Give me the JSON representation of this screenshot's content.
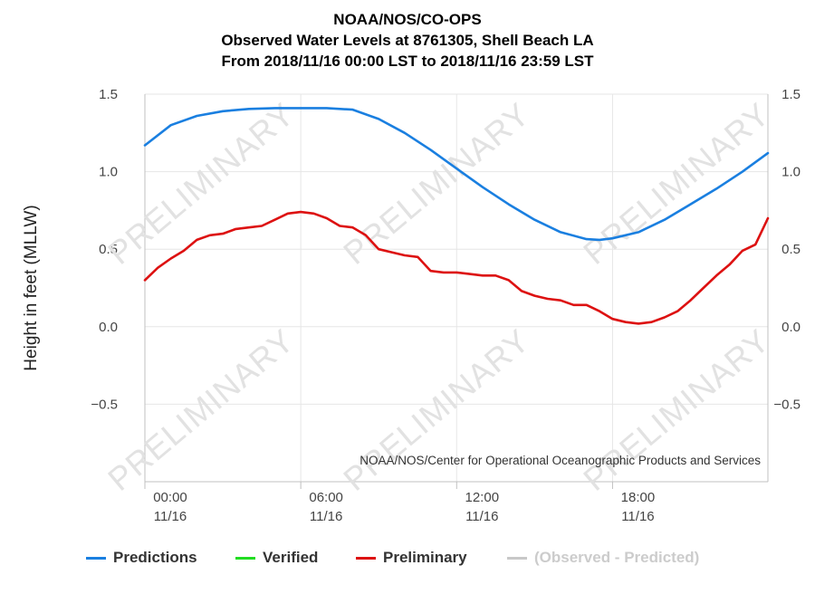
{
  "titles": {
    "line1": "NOAA/NOS/CO-OPS",
    "line2": "Observed Water Levels at 8761305, Shell Beach LA",
    "line3": "From 2018/11/16 00:00 LST to 2018/11/16 23:59 LST"
  },
  "credit": "NOAA/NOS/Center for Operational Oceanographic Products and Services",
  "watermark": "PRELIMINARY",
  "colors": {
    "predictions": "#1a7fe0",
    "verified": "#22dd22",
    "preliminary": "#dd1111",
    "difference": "#c8c8c8"
  },
  "legend": [
    {
      "label": "Predictions",
      "color": "#1a7fe0",
      "enabled": true
    },
    {
      "label": "Verified",
      "color": "#22dd22",
      "enabled": true
    },
    {
      "label": "Preliminary",
      "color": "#dd1111",
      "enabled": true
    },
    {
      "label": "(Observed - Predicted)",
      "color": "#c8c8c8",
      "enabled": false
    }
  ],
  "chart_data": {
    "type": "line",
    "title": "NOAA/NOS/CO-OPS",
    "subtitle": "Observed Water Levels at 8761305, Shell Beach LA",
    "ylabel": "Height in feet (MLLW)",
    "xlabel": "",
    "x_range_hours": [
      0,
      23.98
    ],
    "ylim": [
      -1.0,
      1.5
    ],
    "y_ticks": [
      {
        "value": 1.5,
        "label": "1.5"
      },
      {
        "value": 1.0,
        "label": "1.0"
      },
      {
        "value": 0.5,
        "label": "0.5"
      },
      {
        "value": 0.0,
        "label": "0.0"
      },
      {
        "value": -0.5,
        "label": "−0.5"
      }
    ],
    "x_ticks": [
      {
        "hour": 0,
        "time": "00:00",
        "date": "11/16"
      },
      {
        "hour": 6,
        "time": "06:00",
        "date": "11/16"
      },
      {
        "hour": 12,
        "time": "12:00",
        "date": "11/16"
      },
      {
        "hour": 18,
        "time": "18:00",
        "date": "11/16"
      }
    ],
    "grid": true,
    "legend_position": "bottom",
    "series": [
      {
        "name": "Predictions",
        "color": "#1a7fe0",
        "x": [
          0,
          1,
          2,
          3,
          4,
          5,
          6,
          7,
          8,
          9,
          10,
          11,
          12,
          13,
          14,
          15,
          16,
          17,
          17.5,
          18,
          19,
          20,
          21,
          22,
          23,
          24
        ],
        "y": [
          1.17,
          1.3,
          1.36,
          1.39,
          1.405,
          1.41,
          1.41,
          1.41,
          1.4,
          1.34,
          1.25,
          1.14,
          1.02,
          0.9,
          0.79,
          0.69,
          0.61,
          0.565,
          0.56,
          0.57,
          0.61,
          0.69,
          0.79,
          0.89,
          1.0,
          1.12
        ]
      },
      {
        "name": "Verified",
        "color": "#22dd22",
        "x": [],
        "y": []
      },
      {
        "name": "Preliminary",
        "color": "#dd1111",
        "x": [
          0,
          0.5,
          1,
          1.5,
          2,
          2.5,
          3,
          3.5,
          4,
          4.5,
          5,
          5.5,
          6,
          6.5,
          7,
          7.5,
          8,
          8.5,
          9,
          9.5,
          10,
          10.5,
          11,
          11.5,
          12,
          12.5,
          13,
          13.5,
          14,
          14.5,
          15,
          15.5,
          16,
          16.5,
          17,
          17.5,
          18,
          18.5,
          19,
          19.5,
          20,
          20.5,
          21,
          21.5,
          22,
          22.5,
          23,
          23.5,
          24
        ],
        "y": [
          0.3,
          0.38,
          0.44,
          0.49,
          0.56,
          0.59,
          0.6,
          0.63,
          0.64,
          0.65,
          0.69,
          0.73,
          0.74,
          0.73,
          0.7,
          0.65,
          0.64,
          0.59,
          0.5,
          0.48,
          0.46,
          0.45,
          0.36,
          0.35,
          0.35,
          0.34,
          0.33,
          0.33,
          0.3,
          0.23,
          0.2,
          0.18,
          0.17,
          0.14,
          0.14,
          0.1,
          0.05,
          0.03,
          0.02,
          0.03,
          0.06,
          0.1,
          0.17,
          0.25,
          0.33,
          0.4,
          0.49,
          0.53,
          0.7
        ]
      }
    ]
  }
}
